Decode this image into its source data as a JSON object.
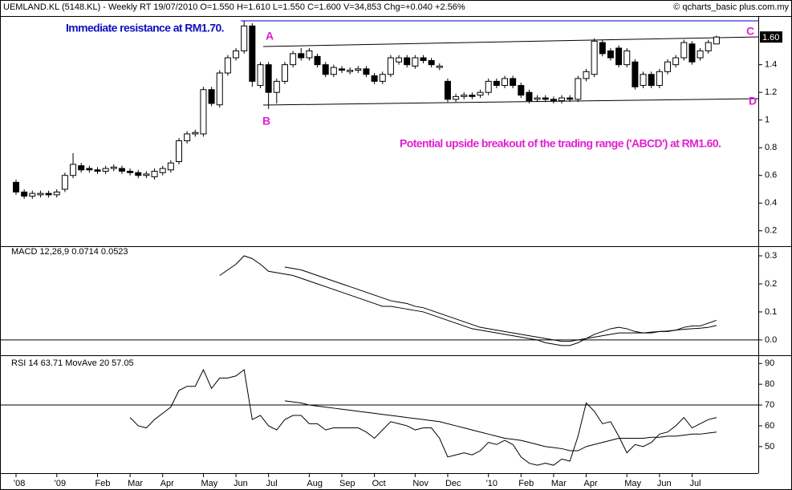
{
  "chart_data": [
    {
      "type": "candlestick",
      "title": "UEMLAND.KL (5148.KL) - Weekly RT  19/07/2010  O=1.550  H=1.610  L=1.550  C=1.600  V=34,853  Chg=+0.040  +2.56%",
      "source": "© qcharts_basic plus.com.my",
      "annotations": [
        "Immediate resistance at RM1.70.",
        "Potential upside breakout of the trading range ('ABCD') at RM1.60.",
        "A",
        "B",
        "C",
        "D"
      ],
      "last_label": "1.60",
      "categories": [
        "'08",
        null,
        null,
        null,
        null,
        "'09",
        null,
        null,
        null,
        null,
        "Feb",
        null,
        null,
        null,
        "Mar",
        null,
        null,
        null,
        "Apr",
        null,
        null,
        null,
        null,
        "May",
        null,
        null,
        null,
        "Jun",
        null,
        null,
        null,
        "Jul",
        null,
        null,
        null,
        null,
        "Aug",
        null,
        null,
        null,
        "Sep",
        null,
        null,
        null,
        "Oct",
        null,
        null,
        null,
        null,
        "Nov",
        null,
        null,
        null,
        "Dec",
        null,
        null,
        null,
        null,
        "'10",
        null,
        null,
        null,
        "Feb",
        null,
        null,
        null,
        "Mar",
        null,
        null,
        null,
        "Apr",
        null,
        null,
        null,
        null,
        "May",
        null,
        null,
        null,
        "Jun",
        null,
        null,
        null,
        "Jul",
        null,
        null,
        null
      ],
      "open": [
        0.55,
        0.48,
        0.45,
        0.46,
        0.47,
        0.46,
        0.5,
        0.6,
        0.67,
        0.65,
        0.64,
        0.63,
        0.65,
        0.65,
        0.63,
        0.62,
        0.6,
        0.59,
        0.62,
        0.64,
        0.7,
        0.85,
        0.9,
        0.9,
        1.22,
        1.11,
        1.34,
        1.45,
        1.5,
        1.68,
        1.25,
        1.4,
        1.2,
        1.28,
        1.4,
        1.48,
        1.45,
        1.46,
        1.4,
        1.33,
        1.37,
        1.35,
        1.36,
        1.37,
        1.32,
        1.28,
        1.33,
        1.42,
        1.45,
        1.39,
        1.45,
        1.43,
        1.38,
        1.28,
        1.15,
        1.17,
        1.18,
        1.18,
        1.2,
        1.28,
        1.25,
        1.3,
        1.25,
        1.2,
        1.15,
        1.16,
        1.15,
        1.14,
        1.16,
        1.15,
        1.3,
        1.33,
        1.56,
        1.5,
        1.52,
        1.4,
        1.42,
        1.25,
        1.33,
        1.25,
        1.35,
        1.4,
        1.45,
        1.55,
        1.45,
        1.5,
        1.55
      ],
      "high": [
        0.57,
        0.5,
        0.49,
        0.49,
        0.49,
        0.5,
        0.62,
        0.76,
        0.69,
        0.67,
        0.66,
        0.67,
        0.68,
        0.67,
        0.65,
        0.64,
        0.63,
        0.65,
        0.67,
        0.71,
        0.87,
        0.92,
        0.93,
        1.24,
        1.24,
        1.36,
        1.47,
        1.52,
        1.72,
        1.7,
        1.42,
        1.42,
        1.3,
        1.42,
        1.5,
        1.52,
        1.52,
        1.48,
        1.42,
        1.4,
        1.39,
        1.38,
        1.39,
        1.39,
        1.34,
        1.35,
        1.47,
        1.47,
        1.47,
        1.47,
        1.47,
        1.45,
        1.41,
        1.3,
        1.19,
        1.2,
        1.2,
        1.22,
        1.3,
        1.3,
        1.32,
        1.32,
        1.27,
        1.22,
        1.18,
        1.18,
        1.17,
        1.18,
        1.18,
        1.32,
        1.37,
        1.59,
        1.58,
        1.52,
        1.54,
        1.52,
        1.44,
        1.35,
        1.35,
        1.37,
        1.44,
        1.47,
        1.58,
        1.57,
        1.52,
        1.58,
        1.61
      ],
      "low": [
        0.46,
        0.43,
        0.43,
        0.44,
        0.44,
        0.44,
        0.48,
        0.58,
        0.62,
        0.62,
        0.61,
        0.61,
        0.63,
        0.61,
        0.6,
        0.58,
        0.58,
        0.57,
        0.6,
        0.62,
        0.68,
        0.83,
        0.88,
        0.88,
        1.1,
        1.09,
        1.32,
        1.43,
        1.48,
        1.24,
        1.23,
        1.08,
        1.12,
        1.26,
        1.38,
        1.43,
        1.43,
        1.38,
        1.31,
        1.31,
        1.34,
        1.33,
        1.34,
        1.31,
        1.26,
        1.26,
        1.31,
        1.4,
        1.38,
        1.37,
        1.41,
        1.38,
        1.36,
        1.13,
        1.13,
        1.15,
        1.15,
        1.16,
        1.18,
        1.23,
        1.23,
        1.23,
        1.16,
        1.12,
        1.13,
        1.13,
        1.12,
        1.12,
        1.13,
        1.13,
        1.28,
        1.31,
        1.46,
        1.43,
        1.38,
        1.38,
        1.22,
        1.23,
        1.23,
        1.23,
        1.33,
        1.38,
        1.43,
        1.4,
        1.43,
        1.48,
        1.55
      ],
      "close": [
        0.48,
        0.45,
        0.47,
        0.47,
        0.46,
        0.48,
        0.6,
        0.68,
        0.64,
        0.64,
        0.63,
        0.65,
        0.66,
        0.63,
        0.62,
        0.6,
        0.61,
        0.63,
        0.65,
        0.69,
        0.85,
        0.9,
        0.91,
        1.22,
        1.12,
        1.34,
        1.45,
        1.5,
        1.68,
        1.28,
        1.4,
        1.2,
        1.28,
        1.4,
        1.48,
        1.45,
        1.5,
        1.4,
        1.33,
        1.38,
        1.36,
        1.36,
        1.37,
        1.33,
        1.28,
        1.33,
        1.45,
        1.45,
        1.4,
        1.45,
        1.43,
        1.4,
        1.39,
        1.15,
        1.17,
        1.18,
        1.17,
        1.2,
        1.28,
        1.25,
        1.3,
        1.25,
        1.18,
        1.14,
        1.16,
        1.15,
        1.14,
        1.16,
        1.15,
        1.3,
        1.35,
        1.57,
        1.48,
        1.45,
        1.4,
        1.5,
        1.24,
        1.33,
        1.25,
        1.35,
        1.42,
        1.45,
        1.56,
        1.42,
        1.5,
        1.56,
        1.6
      ],
      "up_color": "#ffffff",
      "down_color": "#000000",
      "ylim": [
        0.1,
        1.74
      ],
      "yticks": [
        0.2,
        0.4,
        0.6,
        0.8,
        1.0,
        1.2,
        1.4
      ]
    },
    {
      "type": "line",
      "title": "MACD 12,26,9  0.0714  0.0523",
      "series": [
        {
          "color": "#000000",
          "values": [
            null,
            null,
            null,
            null,
            null,
            null,
            null,
            null,
            null,
            null,
            null,
            null,
            null,
            null,
            null,
            null,
            null,
            null,
            null,
            null,
            null,
            null,
            null,
            null,
            null,
            0.23,
            0.25,
            0.27,
            0.3,
            0.29,
            0.27,
            0.245,
            0.24,
            0.235,
            0.23,
            0.22,
            0.21,
            0.2,
            0.19,
            0.18,
            0.17,
            0.16,
            0.15,
            0.14,
            0.13,
            0.12,
            0.12,
            0.115,
            0.11,
            0.105,
            0.1,
            0.09,
            0.08,
            0.07,
            0.06,
            0.05,
            0.04,
            0.035,
            0.03,
            0.025,
            0.02,
            0.015,
            0.01,
            0.005,
            0,
            -0.01,
            -0.015,
            -0.02,
            -0.02,
            -0.01,
            0.005,
            0.02,
            0.03,
            0.04,
            0.045,
            0.04,
            0.03,
            0.025,
            0.025,
            0.03,
            0.03,
            0.035,
            0.045,
            0.05,
            0.05,
            0.06,
            0.07
          ]
        },
        {
          "color": "#000000",
          "values": [
            null,
            null,
            null,
            null,
            null,
            null,
            null,
            null,
            null,
            null,
            null,
            null,
            null,
            null,
            null,
            null,
            null,
            null,
            null,
            null,
            null,
            null,
            null,
            null,
            null,
            null,
            null,
            null,
            null,
            null,
            null,
            null,
            null,
            0.26,
            0.255,
            0.25,
            0.24,
            0.23,
            0.22,
            0.21,
            0.2,
            0.19,
            0.18,
            0.17,
            0.16,
            0.15,
            0.14,
            0.135,
            0.13,
            0.12,
            0.115,
            0.105,
            0.095,
            0.085,
            0.075,
            0.065,
            0.055,
            0.045,
            0.04,
            0.035,
            0.03,
            0.025,
            0.02,
            0.015,
            0.01,
            0.005,
            0,
            -0.005,
            -0.005,
            0,
            0.005,
            0.01,
            0.015,
            0.02,
            0.025,
            0.025,
            0.025,
            0.025,
            0.028,
            0.03,
            0.032,
            0.035,
            0.038,
            0.04,
            0.042,
            0.045,
            0.052
          ]
        }
      ],
      "hline": 0,
      "ylim": [
        -0.046,
        0.32
      ],
      "yticks": [
        {
          "value": 0,
          "label": "0.0"
        },
        0.1,
        0.2,
        0.3
      ]
    },
    {
      "type": "line",
      "title": "RSI 14  63.71  MovAve 20  57.05",
      "series": [
        {
          "color": "#000000",
          "values": [
            null,
            null,
            null,
            null,
            null,
            null,
            null,
            null,
            null,
            null,
            null,
            null,
            null,
            null,
            64,
            60,
            59,
            63,
            66,
            69,
            77,
            79,
            79,
            87,
            78,
            83,
            83,
            84,
            87,
            63,
            65,
            60,
            58,
            63,
            65,
            65,
            61,
            61,
            58,
            59,
            59,
            59,
            59,
            57,
            54,
            58,
            62,
            61,
            60,
            58,
            59,
            59,
            54,
            45,
            46,
            47,
            46,
            48,
            52,
            51,
            53,
            51,
            45,
            42,
            41,
            42,
            41,
            44,
            43,
            55,
            71,
            67,
            61,
            62,
            55,
            47,
            51,
            50,
            52,
            56,
            57,
            60,
            64,
            59,
            61,
            63,
            64
          ]
        },
        {
          "color": "#000000",
          "values": [
            null,
            null,
            null,
            null,
            null,
            null,
            null,
            null,
            null,
            null,
            null,
            null,
            null,
            null,
            null,
            null,
            null,
            null,
            null,
            null,
            null,
            null,
            null,
            null,
            null,
            null,
            null,
            null,
            null,
            null,
            null,
            null,
            null,
            72,
            71.5,
            71,
            70,
            69.5,
            69,
            68.5,
            68,
            67.5,
            67,
            66.5,
            66,
            65.5,
            65,
            64.5,
            64,
            63.5,
            63,
            62.5,
            62,
            61,
            60,
            59,
            58,
            57,
            56,
            55,
            54,
            53.5,
            53,
            52,
            51,
            50,
            49.5,
            49,
            48,
            48,
            50,
            51,
            52,
            53,
            54,
            54,
            54,
            54,
            54.5,
            54.5,
            55,
            55,
            55.5,
            56,
            56,
            56.5,
            57
          ]
        }
      ],
      "hline": 70,
      "ylim": [
        37.2,
        92.8
      ],
      "yticks": [
        50,
        60,
        70,
        80,
        90
      ]
    }
  ]
}
